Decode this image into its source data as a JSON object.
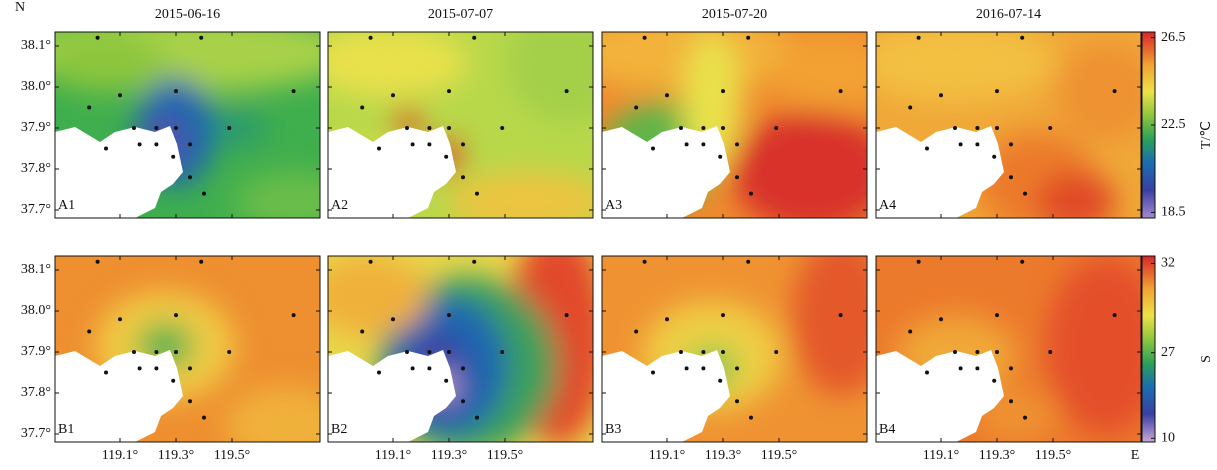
{
  "columns": [
    "2015-06-16",
    "2015-07-07",
    "2015-07-20",
    "2016-07-14"
  ],
  "rows": [
    {
      "panels": [
        "A1",
        "A2",
        "A3",
        "A4"
      ],
      "colorbar": {
        "label": "T/℃",
        "ticks": [
          26.5,
          22.5,
          18.5
        ]
      }
    },
    {
      "panels": [
        "B1",
        "B2",
        "B3",
        "B4"
      ],
      "colorbar": {
        "label": "S",
        "ticks": [
          32,
          27,
          10
        ]
      }
    }
  ],
  "lat_axis": {
    "label": "N",
    "ticks": [
      {
        "value": 38.1,
        "label": "38.1°"
      },
      {
        "value": 38.0,
        "label": "38.0°"
      },
      {
        "value": 37.9,
        "label": "37.9°"
      },
      {
        "value": 37.8,
        "label": "37.8°"
      },
      {
        "value": 37.7,
        "label": "37.7°"
      }
    ]
  },
  "lon_axis": {
    "label": "E",
    "ticks": [
      {
        "value": 119.1,
        "label": "119.1°"
      },
      {
        "value": 119.3,
        "label": "119.3°"
      },
      {
        "value": 119.5,
        "label": "119.5°"
      }
    ]
  },
  "stations": {
    "lon": [
      119.02,
      119.39,
      118.99,
      119.1,
      119.3,
      119.72,
      119.15,
      119.23,
      119.3,
      119.05,
      119.17,
      119.23,
      119.29,
      119.35,
      119.35,
      119.4,
      119.49
    ],
    "lat": [
      38.12,
      38.12,
      37.95,
      37.98,
      37.99,
      37.99,
      37.9,
      37.9,
      37.9,
      37.85,
      37.86,
      37.86,
      37.83,
      37.86,
      37.78,
      37.74,
      37.9
    ]
  }
}
